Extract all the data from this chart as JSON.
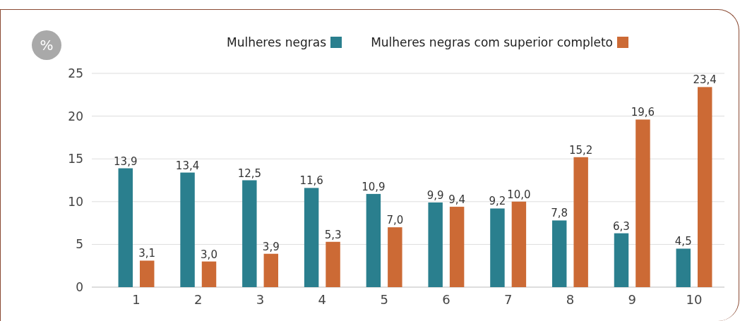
{
  "chart_data": {
    "type": "bar",
    "ylabel": "%",
    "categories": [
      "1",
      "2",
      "3",
      "4",
      "5",
      "6",
      "7",
      "8",
      "9",
      "10"
    ],
    "series": [
      {
        "name": "Mulheres negras",
        "color": "#2a7f8e",
        "values": [
          13.9,
          13.4,
          12.5,
          11.6,
          10.9,
          9.9,
          9.2,
          7.8,
          6.3,
          4.5
        ],
        "value_labels": [
          "13,9",
          "13,4",
          "12,5",
          "11,6",
          "10,9",
          "9,9",
          "9,2",
          "7,8",
          "6,3",
          "4,5"
        ]
      },
      {
        "name": "Mulheres negras com superior completo",
        "color": "#cc6a35",
        "values": [
          3.1,
          3.0,
          3.9,
          5.3,
          7.0,
          9.4,
          10.0,
          15.2,
          19.6,
          23.4
        ],
        "value_labels": [
          "3,1",
          "3,0",
          "3,9",
          "5,3",
          "7,0",
          "9,4",
          "10,0",
          "15,2",
          "19,6",
          "23,4"
        ]
      }
    ],
    "ylim": [
      0,
      25
    ],
    "yticks": [
      0,
      5,
      10,
      15,
      20,
      25
    ],
    "grid": "y",
    "legend": "top"
  }
}
